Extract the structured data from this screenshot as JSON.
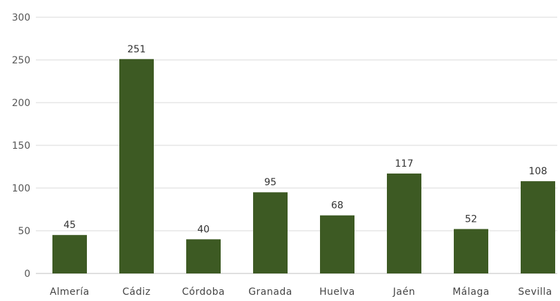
{
  "chart_data": {
    "type": "bar",
    "categories": [
      "Almería",
      "Cádiz",
      "Córdoba",
      "Granada",
      "Huelva",
      "Jaén",
      "Málaga",
      "Sevilla"
    ],
    "values": [
      45,
      251,
      40,
      95,
      68,
      117,
      52,
      108
    ],
    "data_labels": [
      "45",
      "251",
      "40",
      "95",
      "68",
      "117",
      "52",
      "108"
    ],
    "y_ticks": [
      "0",
      "50",
      "100",
      "150",
      "200",
      "250",
      "300"
    ],
    "ylim": [
      0,
      300
    ],
    "grid": true,
    "legend": "none",
    "colors": {
      "bar": "#3d5a23"
    }
  }
}
